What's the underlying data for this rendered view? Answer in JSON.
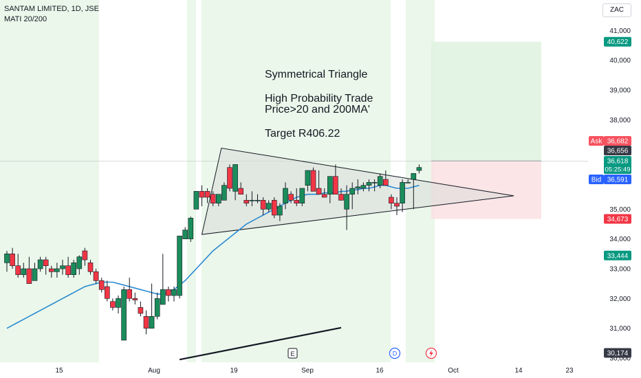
{
  "header": {
    "title": "SANTAM LIMITED, 1D, JSE",
    "indicator": "MATI 20/200",
    "currency": "ZAC"
  },
  "annotation": {
    "line1": "Symmetrical Triangle",
    "line2": "High Probability Trade",
    "line3": "Price>20 and 200MA'",
    "line4": "Target R406.22"
  },
  "price_tags": {
    "ask_label": "Ask",
    "ask": "36,682",
    "last_close": "36,656",
    "current": "36,618",
    "countdown": "05:25:49",
    "bid_label": "Bid",
    "bid": "36,591",
    "target": "40,622",
    "stop": "34,673",
    "support": "33,444",
    "bottom": "30,174"
  },
  "event_markers": {
    "earnings": "E",
    "dividend": "D"
  },
  "colors": {
    "up": "#22ab94",
    "up_dark": "#1b8c5b",
    "down": "#f23645",
    "ma": "#2a8ad3",
    "session_bg": "#eaf7ea",
    "target_zone": "#dff2df",
    "stop_zone": "#fce1e3",
    "triangle_fill": "#d9ddd9"
  },
  "chart_data": {
    "type": "candlestick",
    "title": "SANTAM LIMITED, 1D, JSE",
    "y_ticks": [
      "30,000",
      "31,000",
      "32,000",
      "33,000",
      "34,000",
      "35,000",
      "36,000",
      "37,000",
      "38,000",
      "39,000",
      "40,000",
      "41,000"
    ],
    "ylim": [
      29950,
      41250
    ],
    "x_ticks": [
      "15",
      "Aug",
      "19",
      "Sep",
      "16",
      "Oct",
      "14",
      "23"
    ],
    "series_ma_name": "MATI 20/200",
    "candles": [
      {
        "o": 33200,
        "h": 33600,
        "l": 32900,
        "c": 33500
      },
      {
        "o": 33500,
        "h": 33700,
        "l": 33000,
        "c": 33100
      },
      {
        "o": 33100,
        "h": 33500,
        "l": 32700,
        "c": 32800
      },
      {
        "o": 32800,
        "h": 33200,
        "l": 32700,
        "c": 33000
      },
      {
        "o": 33000,
        "h": 33400,
        "l": 32500,
        "c": 32500
      },
      {
        "o": 32600,
        "h": 33200,
        "l": 32600,
        "c": 33000
      },
      {
        "o": 33000,
        "h": 33400,
        "l": 32900,
        "c": 33300
      },
      {
        "o": 33300,
        "h": 33400,
        "l": 32800,
        "c": 33100
      },
      {
        "o": 33000,
        "h": 33100,
        "l": 32700,
        "c": 32900
      },
      {
        "o": 32900,
        "h": 33200,
        "l": 32700,
        "c": 33000
      },
      {
        "o": 33000,
        "h": 33300,
        "l": 32800,
        "c": 33100
      },
      {
        "o": 33100,
        "h": 33400,
        "l": 32700,
        "c": 32800
      },
      {
        "o": 32800,
        "h": 33300,
        "l": 32700,
        "c": 33200
      },
      {
        "o": 33000,
        "h": 33450,
        "l": 32800,
        "c": 33400
      },
      {
        "o": 33600,
        "h": 33700,
        "l": 33100,
        "c": 33300
      },
      {
        "o": 33200,
        "h": 33300,
        "l": 32800,
        "c": 32900
      },
      {
        "o": 32900,
        "h": 33000,
        "l": 32500,
        "c": 32600
      },
      {
        "o": 32600,
        "h": 32700,
        "l": 32200,
        "c": 32300
      },
      {
        "o": 32400,
        "h": 32600,
        "l": 31900,
        "c": 32000
      },
      {
        "o": 31900,
        "h": 32000,
        "l": 31600,
        "c": 31700
      },
      {
        "o": 31700,
        "h": 32100,
        "l": 31500,
        "c": 32000
      },
      {
        "o": 30600,
        "h": 32400,
        "l": 30600,
        "c": 32300
      },
      {
        "o": 32300,
        "h": 32700,
        "l": 31900,
        "c": 32000
      },
      {
        "o": 32000,
        "h": 32200,
        "l": 31800,
        "c": 31950
      },
      {
        "o": 31700,
        "h": 31900,
        "l": 31400,
        "c": 31500
      },
      {
        "o": 31400,
        "h": 31600,
        "l": 30800,
        "c": 31000
      },
      {
        "o": 31000,
        "h": 32500,
        "l": 31000,
        "c": 31400
      },
      {
        "o": 31400,
        "h": 32200,
        "l": 31300,
        "c": 32000
      },
      {
        "o": 31800,
        "h": 33500,
        "l": 31800,
        "c": 32300
      },
      {
        "o": 32300,
        "h": 32400,
        "l": 31900,
        "c": 32100
      },
      {
        "o": 32100,
        "h": 32400,
        "l": 31900,
        "c": 32300
      },
      {
        "o": 32100,
        "h": 34100,
        "l": 32000,
        "c": 34100
      },
      {
        "o": 34000,
        "h": 34400,
        "l": 34000,
        "c": 34300
      },
      {
        "o": 34000,
        "h": 34750,
        "l": 33900,
        "c": 34700
      },
      {
        "o": 35000,
        "h": 35600,
        "l": 35000,
        "c": 35600
      },
      {
        "o": 35600,
        "h": 35800,
        "l": 35100,
        "c": 35400
      },
      {
        "o": 35600,
        "h": 35700,
        "l": 35200,
        "c": 35400
      },
      {
        "o": 35500,
        "h": 35600,
        "l": 35100,
        "c": 35200
      },
      {
        "o": 35200,
        "h": 35500,
        "l": 35100,
        "c": 35500
      },
      {
        "o": 35300,
        "h": 35900,
        "l": 35300,
        "c": 35800
      },
      {
        "o": 36400,
        "h": 36500,
        "l": 35600,
        "c": 35700
      },
      {
        "o": 35600,
        "h": 36500,
        "l": 35300,
        "c": 36500
      },
      {
        "o": 35700,
        "h": 35900,
        "l": 35500,
        "c": 35500
      },
      {
        "o": 35300,
        "h": 35500,
        "l": 35100,
        "c": 35200
      },
      {
        "o": 35300,
        "h": 35600,
        "l": 35100,
        "c": 35300
      },
      {
        "o": 35300,
        "h": 35500,
        "l": 35200,
        "c": 35300
      },
      {
        "o": 35300,
        "h": 35400,
        "l": 34800,
        "c": 35000
      },
      {
        "o": 35000,
        "h": 35300,
        "l": 34900,
        "c": 35200
      },
      {
        "o": 35300,
        "h": 35400,
        "l": 34700,
        "c": 34800
      },
      {
        "o": 34800,
        "h": 35200,
        "l": 34600,
        "c": 35100
      },
      {
        "o": 35200,
        "h": 35900,
        "l": 35000,
        "c": 35700
      },
      {
        "o": 35500,
        "h": 35600,
        "l": 35200,
        "c": 35300
      },
      {
        "o": 35300,
        "h": 35700,
        "l": 35100,
        "c": 35200
      },
      {
        "o": 35200,
        "h": 35700,
        "l": 35100,
        "c": 35700
      },
      {
        "o": 35800,
        "h": 36300,
        "l": 35600,
        "c": 36300
      },
      {
        "o": 36300,
        "h": 36400,
        "l": 35600,
        "c": 35600
      },
      {
        "o": 35700,
        "h": 36300,
        "l": 35500,
        "c": 35500
      },
      {
        "o": 35500,
        "h": 35700,
        "l": 35400,
        "c": 35400
      },
      {
        "o": 35500,
        "h": 36100,
        "l": 35200,
        "c": 36100
      },
      {
        "o": 36100,
        "h": 36500,
        "l": 35500,
        "c": 35500
      },
      {
        "o": 35500,
        "h": 35700,
        "l": 35300,
        "c": 35300
      },
      {
        "o": 35000,
        "h": 35800,
        "l": 34300,
        "c": 35500
      },
      {
        "o": 35500,
        "h": 35900,
        "l": 35000,
        "c": 35700
      },
      {
        "o": 35700,
        "h": 36000,
        "l": 35500,
        "c": 35750
      },
      {
        "o": 35700,
        "h": 35900,
        "l": 35600,
        "c": 35800
      },
      {
        "o": 35800,
        "h": 36000,
        "l": 35600,
        "c": 35900
      },
      {
        "o": 35900,
        "h": 36000,
        "l": 35600,
        "c": 35900
      },
      {
        "o": 35800,
        "h": 36200,
        "l": 35700,
        "c": 36100
      },
      {
        "o": 36000,
        "h": 36300,
        "l": 35800,
        "c": 35800
      },
      {
        "o": 35400,
        "h": 35500,
        "l": 35000,
        "c": 35200
      },
      {
        "o": 35200,
        "h": 35400,
        "l": 34800,
        "c": 35100
      },
      {
        "o": 35200,
        "h": 36000,
        "l": 34900,
        "c": 35900
      },
      {
        "o": 35900,
        "h": 36000,
        "l": 35900,
        "c": 35900
      },
      {
        "o": 36000,
        "h": 36200,
        "l": 35000,
        "c": 36200
      },
      {
        "o": 36300,
        "h": 36500,
        "l": 36200,
        "c": 36400
      }
    ],
    "ma": [
      [
        0,
        31000
      ],
      [
        1,
        31100
      ],
      [
        2,
        31200
      ],
      [
        3,
        31300
      ],
      [
        4,
        31400
      ],
      [
        5,
        31500
      ],
      [
        6,
        31600
      ],
      [
        7,
        31700
      ],
      [
        8,
        31800
      ],
      [
        9,
        31900
      ],
      [
        10,
        32000
      ],
      [
        11,
        32100
      ],
      [
        12,
        32200
      ],
      [
        13,
        32300
      ],
      [
        14,
        32400
      ],
      [
        15,
        32450
      ],
      [
        16,
        32500
      ],
      [
        17,
        32550
      ],
      [
        18,
        32550
      ],
      [
        19,
        32550
      ],
      [
        20,
        32500
      ],
      [
        21,
        32450
      ],
      [
        22,
        32400
      ],
      [
        23,
        32350
      ],
      [
        24,
        32300
      ],
      [
        25,
        32250
      ],
      [
        26,
        32200
      ],
      [
        27,
        32150
      ],
      [
        28,
        32150
      ],
      [
        29,
        32200
      ],
      [
        30,
        32300
      ],
      [
        31,
        32450
      ],
      [
        32,
        32600
      ],
      [
        33,
        32800
      ],
      [
        34,
        33000
      ],
      [
        35,
        33200
      ],
      [
        36,
        33400
      ],
      [
        37,
        33600
      ],
      [
        38,
        33750
      ],
      [
        39,
        33900
      ],
      [
        40,
        34050
      ],
      [
        41,
        34200
      ],
      [
        42,
        34350
      ],
      [
        43,
        34500
      ],
      [
        44,
        34600
      ],
      [
        45,
        34700
      ],
      [
        46,
        34800
      ],
      [
        47,
        34900
      ],
      [
        48,
        35000
      ],
      [
        49,
        35100
      ],
      [
        50,
        35200
      ],
      [
        51,
        35300
      ],
      [
        52,
        35400
      ],
      [
        53,
        35450
      ],
      [
        54,
        35500
      ],
      [
        55,
        35500
      ],
      [
        56,
        35500
      ],
      [
        57,
        35550
      ],
      [
        58,
        35550
      ],
      [
        59,
        35550
      ],
      [
        60,
        35600
      ],
      [
        61,
        35600
      ],
      [
        62,
        35650
      ],
      [
        63,
        35650
      ],
      [
        64,
        35700
      ],
      [
        65,
        35700
      ],
      [
        66,
        35750
      ],
      [
        67,
        35800
      ],
      [
        68,
        35800
      ],
      [
        69,
        35750
      ],
      [
        70,
        35700
      ],
      [
        71,
        35700
      ],
      [
        72,
        35700
      ],
      [
        73,
        35750
      ],
      [
        74,
        35800
      ]
    ],
    "target_zone": [
      36618,
      40622
    ],
    "stop_zone": [
      34673,
      36618
    ],
    "triangle": [
      [
        35.0,
        34150
      ],
      [
        38.5,
        37050
      ],
      [
        91,
        35450
      ]
    ],
    "lower_trendline": [
      [
        31,
        29950
      ],
      [
        60,
        31020
      ]
    ]
  }
}
